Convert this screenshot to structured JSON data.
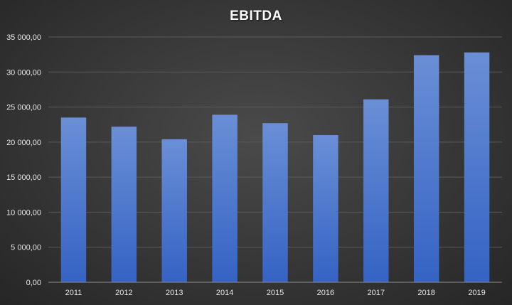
{
  "chart_data": {
    "type": "bar",
    "title": "EBITDA",
    "categories": [
      "2011",
      "2012",
      "2013",
      "2014",
      "2015",
      "2016",
      "2017",
      "2018",
      "2019"
    ],
    "values": [
      23500,
      22200,
      20400,
      23900,
      22700,
      21000,
      26100,
      32400,
      32800
    ],
    "ylim": [
      0,
      35000
    ],
    "yticks": [
      0,
      5000,
      10000,
      15000,
      20000,
      25000,
      30000,
      35000
    ],
    "ytick_labels": [
      "0,00",
      "5 000,00",
      "10 000,00",
      "15 000,00",
      "20 000,00",
      "25 000,00",
      "30 000,00",
      "35 000,00"
    ],
    "xlabel": "",
    "ylabel": "",
    "grid": true,
    "legend": "none",
    "colors": {
      "bar_top": "#6a8fd6",
      "bar_bottom": "#3563c4",
      "grid": "#5a5a5a",
      "axis": "#8c8c8c",
      "text": "#e6e6e6"
    }
  }
}
